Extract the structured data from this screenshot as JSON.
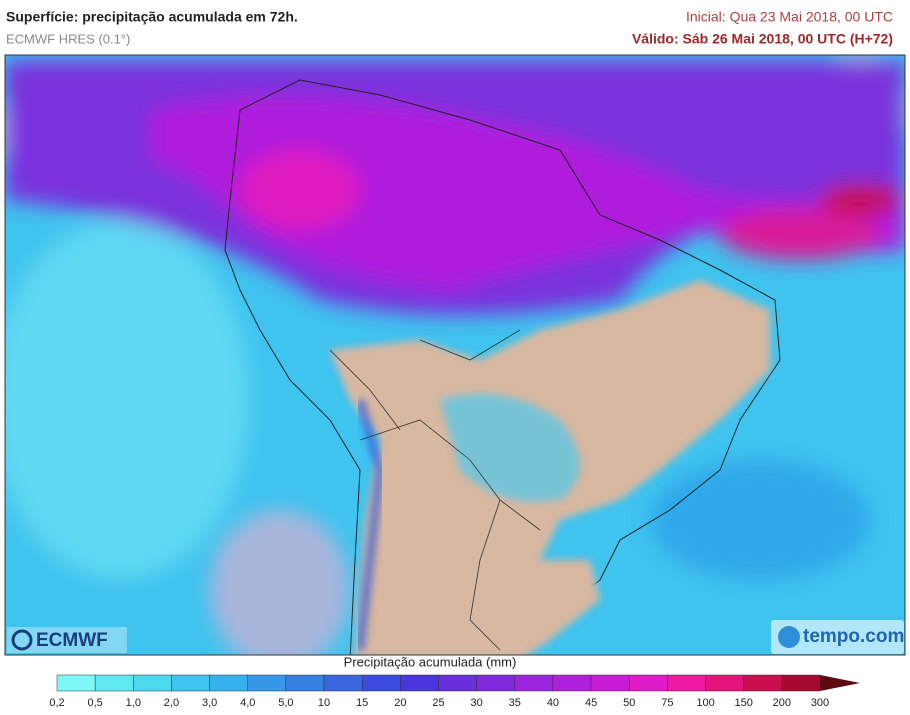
{
  "header": {
    "title": "Superfície: precipitação acumulada em 72h.",
    "model": "ECMWF HRES (0.1°)",
    "initial": "Inicial: Qua 23 Mai 2018, 00 UTC",
    "valid": "Válido: Sáb 26 Mai 2018, 00 UTC (H+72)"
  },
  "logos": {
    "left": "ECMWF",
    "right": "tempo.com"
  },
  "colorbar": {
    "label": "Precipitação acumulada (mm)",
    "ticks": [
      "0,2",
      "0,5",
      "1,0",
      "2,0",
      "3,0",
      "4,0",
      "5,0",
      "10",
      "15",
      "20",
      "25",
      "30",
      "35",
      "40",
      "45",
      "50",
      "75",
      "100",
      "150",
      "200",
      "300"
    ],
    "colors": [
      "#7ef7f7",
      "#5ee9f0",
      "#4cd9ef",
      "#3fc6ee",
      "#35b2ec",
      "#3597e8",
      "#3680e4",
      "#3a66e0",
      "#3b4be0",
      "#4a35dd",
      "#6a2fdc",
      "#7f2add",
      "#9a25dd",
      "#b01fdc",
      "#c81cd6",
      "#df1bc7",
      "#ee1aa2",
      "#e3157a",
      "#c80e4c",
      "#a60a30"
    ],
    "overflow_color": "#5a0a10"
  }
}
